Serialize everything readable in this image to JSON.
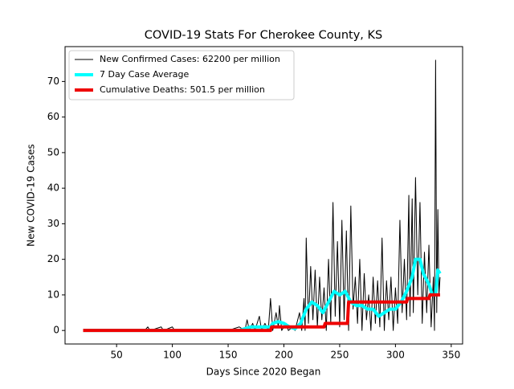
{
  "chart_data": {
    "type": "line",
    "title": "COVID-19 Stats For Cherokee County, KS",
    "x_label": "Days Since 2020 Began",
    "y_label": "New COVID-19 Cases",
    "xlim": [
      3.8,
      360.2
    ],
    "xticks": [
      50,
      100,
      150,
      200,
      250,
      300,
      350
    ],
    "ylim": [
      -3.8,
      79.8
    ],
    "yticks": [
      0,
      10,
      20,
      30,
      40,
      50,
      60,
      70
    ],
    "legend": "upper left",
    "series": [
      {
        "name": "New Confirmed Cases: 62200 per million",
        "color": "#000000",
        "line_width": 1,
        "x": [
          20,
          75,
          78,
          80,
          90,
          92,
          100,
          102,
          150,
          160,
          165,
          167,
          169,
          172,
          174,
          178,
          180,
          183,
          186,
          188,
          190,
          193,
          195,
          196,
          198,
          202,
          204,
          208,
          210,
          214,
          216,
          218,
          219,
          220,
          222,
          224,
          226,
          228,
          230,
          232,
          234,
          236,
          238,
          240,
          242,
          244,
          246,
          248,
          250,
          252,
          254,
          256,
          258,
          260,
          262,
          264,
          266,
          268,
          270,
          272,
          274,
          276,
          278,
          280,
          282,
          284,
          286,
          288,
          290,
          292,
          294,
          296,
          298,
          300,
          302,
          304,
          306,
          308,
          310,
          312,
          313,
          315,
          316,
          318,
          320,
          322,
          324,
          326,
          328,
          330,
          332,
          334,
          335,
          336,
          337,
          338,
          339,
          340
        ],
        "values": [
          0,
          0,
          1,
          0,
          1,
          0,
          1,
          0,
          0,
          1,
          0,
          3,
          0,
          2,
          0,
          4,
          0,
          2,
          0,
          9,
          0,
          5,
          1,
          7,
          0,
          2,
          0,
          1,
          0,
          5,
          0,
          9,
          0,
          26,
          2,
          18,
          3,
          17,
          1,
          15,
          3,
          12,
          0,
          20,
          2,
          36,
          4,
          25,
          1,
          31,
          3,
          28,
          0,
          35,
          6,
          15,
          2,
          20,
          0,
          16,
          3,
          10,
          0,
          15,
          2,
          14,
          1,
          26,
          0,
          14,
          3,
          15,
          0,
          12,
          2,
          31,
          5,
          20,
          3,
          38,
          4,
          37,
          5,
          43,
          10,
          36,
          2,
          22,
          5,
          24,
          1,
          15,
          0,
          76,
          5,
          34,
          10,
          15
        ]
      },
      {
        "name": "7 Day Case Average",
        "color": "#00ffff",
        "line_width": 4,
        "x": [
          20,
          150,
          160,
          170,
          180,
          188,
          190,
          195,
          200,
          205,
          210,
          215,
          220,
          225,
          230,
          235,
          240,
          245,
          250,
          255,
          260,
          265,
          270,
          275,
          280,
          285,
          290,
          295,
          300,
          305,
          310,
          315,
          318,
          322,
          325,
          330,
          333,
          336,
          338,
          340
        ],
        "values": [
          0,
          0,
          0,
          1,
          1,
          1,
          2,
          2.5,
          2,
          1,
          0.5,
          2,
          6,
          8,
          7,
          5,
          8,
          11,
          10,
          11,
          8,
          7,
          7,
          6,
          6,
          4,
          5,
          6,
          6,
          8,
          11,
          15,
          20,
          20,
          16,
          13,
          10,
          10,
          17,
          16
        ]
      },
      {
        "name": "Cumulative Deaths: 501.5 per million",
        "color": "#ee0000",
        "line_width": 4,
        "x": [
          20,
          188,
          189,
          236,
          237,
          257,
          258,
          310,
          311,
          330,
          331,
          340
        ],
        "values": [
          0,
          0,
          1,
          1,
          2,
          2,
          8,
          8,
          9,
          9,
          10,
          10
        ]
      }
    ]
  }
}
